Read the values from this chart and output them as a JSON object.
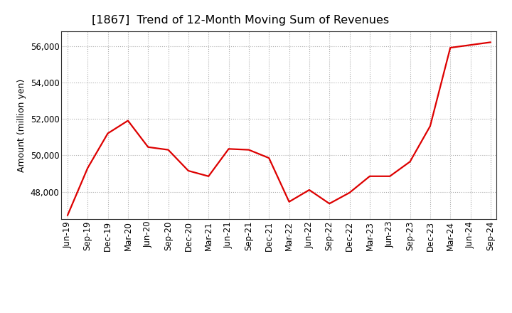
{
  "title": "[1867]  Trend of 12-Month Moving Sum of Revenues",
  "ylabel": "Amount (million yen)",
  "line_color": "#dd0000",
  "background_color": "#ffffff",
  "plot_bg_color": "#ffffff",
  "grid_color": "#999999",
  "x_labels": [
    "Jun-19",
    "Sep-19",
    "Dec-19",
    "Mar-20",
    "Jun-20",
    "Sep-20",
    "Dec-20",
    "Mar-21",
    "Jun-21",
    "Sep-21",
    "Dec-21",
    "Mar-22",
    "Jun-22",
    "Sep-22",
    "Dec-22",
    "Mar-23",
    "Jun-23",
    "Sep-23",
    "Dec-23",
    "Mar-24",
    "Jun-24",
    "Sep-24"
  ],
  "values": [
    46700,
    49300,
    51200,
    51900,
    50450,
    50300,
    49150,
    48850,
    50350,
    50300,
    49850,
    47450,
    48100,
    47350,
    47950,
    48850,
    48850,
    49650,
    51600,
    55900,
    56050,
    56200
  ],
  "ylim": [
    46500,
    56800
  ],
  "yticks": [
    48000,
    50000,
    52000,
    54000,
    56000
  ],
  "title_fontsize": 11.5,
  "ylabel_fontsize": 9,
  "tick_fontsize": 8.5
}
